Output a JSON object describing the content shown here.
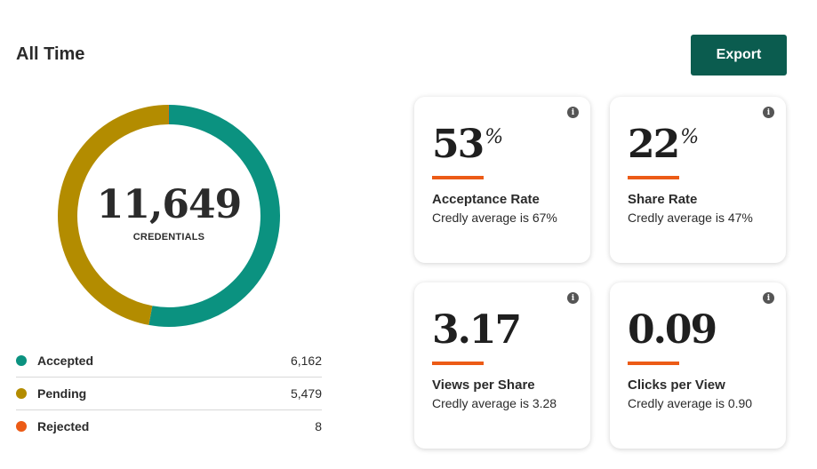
{
  "header": {
    "title": "All Time",
    "export_label": "Export"
  },
  "donut": {
    "total": "11,649",
    "caption": "CREDENTIALS"
  },
  "legend": {
    "items": [
      {
        "label": "Accepted",
        "value": "6,162",
        "color": "#0b9280"
      },
      {
        "label": "Pending",
        "value": "5,479",
        "color": "#b38c00"
      },
      {
        "label": "Rejected",
        "value": "8",
        "color": "#ec5b16"
      }
    ]
  },
  "chart_data": {
    "type": "pie",
    "categories": [
      "Accepted",
      "Pending",
      "Rejected"
    ],
    "values": [
      6162,
      5479,
      8
    ],
    "colors": [
      "#0b9280",
      "#b38c00",
      "#ec5b16"
    ],
    "title": ""
  },
  "cards": [
    {
      "value": "53",
      "suffix": "%",
      "label": "Acceptance Rate",
      "sub": "Credly average is 67%"
    },
    {
      "value": "22",
      "suffix": "%",
      "label": "Share Rate",
      "sub": "Credly average is 47%"
    },
    {
      "value": "3.17",
      "suffix": "",
      "label": "Views per Share",
      "sub": "Credly average is 3.28"
    },
    {
      "value": "0.09",
      "suffix": "",
      "label": "Clicks per View",
      "sub": "Credly average is 0.90"
    }
  ],
  "colors": {
    "export_bg": "#0b5c4f",
    "accent_bar": "#ec5b16"
  },
  "icons": {
    "info": "info-icon"
  }
}
